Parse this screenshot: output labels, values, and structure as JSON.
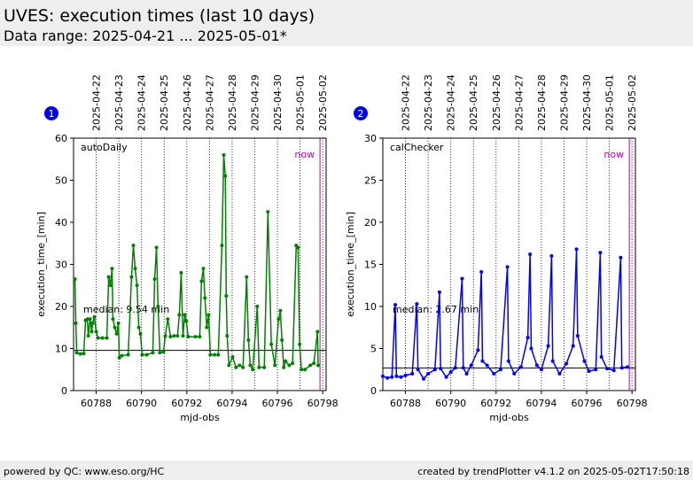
{
  "header": {
    "title": "UVES: execution times (last 10 days)",
    "subtitle": "Data range: 2025-04-21 ... 2025-05-01*"
  },
  "footer": {
    "left": "powered by QC: www.eso.org/HC",
    "right": "created by trendPlotter v4.1.2 on 2025-05-02T17:50:18"
  },
  "chart_data": [
    {
      "type": "line",
      "panel": "1",
      "xlabel": "mjd-obs",
      "ylabel": "execution_time_[min]",
      "xlim": [
        60787.0,
        60798.15
      ],
      "ylim": [
        0,
        60
      ],
      "xticks": [
        60788,
        60790,
        60792,
        60794,
        60796,
        60798
      ],
      "yticks": [
        0,
        10,
        20,
        30,
        40,
        50,
        60
      ],
      "x2ticks": [
        {
          "value": 60788,
          "label": "2025-04-22"
        },
        {
          "value": 60789,
          "label": "2025-04-23"
        },
        {
          "value": 60790,
          "label": "2025-04-24"
        },
        {
          "value": 60791,
          "label": "2025-04-25"
        },
        {
          "value": 60792,
          "label": "2025-04-26"
        },
        {
          "value": 60793,
          "label": "2025-04-27"
        },
        {
          "value": 60794,
          "label": "2025-04-28"
        },
        {
          "value": 60795,
          "label": "2025-04-29"
        },
        {
          "value": 60796,
          "label": "2025-04-30"
        },
        {
          "value": 60797,
          "label": "2025-05-01"
        },
        {
          "value": 60798,
          "label": "2025-05-02"
        }
      ],
      "median": 9.54,
      "median_label": "median: 9.54 min",
      "now": 60797.88,
      "now_label": "now",
      "series": [
        {
          "name": "autoDaily",
          "color": "#008000",
          "x": [
            60787.06,
            60787.1,
            60787.14,
            60787.3,
            60787.45,
            60787.53,
            60787.61,
            60787.65,
            60787.73,
            60787.8,
            60787.84,
            60787.92,
            60788.0,
            60788.08,
            60788.27,
            60788.47,
            60788.55,
            60788.63,
            60788.7,
            60788.74,
            60788.82,
            60788.9,
            60788.98,
            60789.02,
            60789.13,
            60789.41,
            60789.56,
            60789.64,
            60789.72,
            60789.8,
            60789.88,
            60789.95,
            60790.03,
            60790.23,
            60790.5,
            60790.58,
            60790.66,
            60790.73,
            60790.81,
            60790.97,
            60791.05,
            60791.16,
            60791.28,
            60791.44,
            60791.59,
            60791.67,
            60791.75,
            60791.83,
            60791.91,
            60791.98,
            60792.06,
            60792.38,
            60792.57,
            60792.65,
            60792.73,
            60792.8,
            60792.88,
            60792.96,
            60793.04,
            60793.23,
            60793.39,
            60793.55,
            60793.63,
            60793.7,
            60793.74,
            60793.78,
            60793.86,
            60794.02,
            60794.17,
            60794.33,
            60794.48,
            60794.64,
            60794.72,
            60794.8,
            60794.91,
            60795.11,
            60795.19,
            60795.42,
            60795.58,
            60795.73,
            60795.89,
            60796.05,
            60796.13,
            60796.2,
            60796.28,
            60796.36,
            60796.52,
            60796.67,
            60796.83,
            60796.91,
            60796.98,
            60797.06,
            60797.22,
            60797.45,
            60797.61,
            60797.77,
            60797.8
          ],
          "values": [
            26.5,
            16,
            9,
            8.7,
            8.8,
            16.7,
            17,
            13,
            17,
            14,
            16,
            17.5,
            14,
            12.5,
            12.5,
            12.5,
            27,
            25,
            29,
            17,
            15,
            13.5,
            16,
            7.8,
            8.3,
            8.5,
            27,
            34.5,
            29,
            25,
            15,
            13.5,
            8.5,
            8.5,
            9,
            26.5,
            34,
            20,
            9,
            9.2,
            13,
            17,
            12.8,
            13,
            13,
            18,
            28,
            13,
            18,
            16.5,
            12.8,
            12.8,
            12.8,
            26,
            29,
            22,
            15,
            18,
            8.5,
            8.5,
            8.5,
            34.5,
            56,
            51,
            22.5,
            13,
            6,
            8,
            5.5,
            6,
            5.5,
            27,
            12,
            6,
            5,
            20,
            5.5,
            5.5,
            42.5,
            11,
            6,
            17,
            19,
            12,
            5.5,
            7,
            6,
            6.5,
            34.5,
            34,
            11,
            5,
            5,
            6,
            6.5,
            14,
            6
          ]
        }
      ]
    },
    {
      "type": "line",
      "panel": "2",
      "xlabel": "mjd-obs",
      "ylabel": "execution_time_[min]",
      "xlim": [
        60787.0,
        60798.15
      ],
      "ylim": [
        0,
        30
      ],
      "xticks": [
        60788,
        60790,
        60792,
        60794,
        60796,
        60798
      ],
      "yticks": [
        0,
        5,
        10,
        15,
        20,
        25,
        30
      ],
      "x2ticks": [
        {
          "value": 60788,
          "label": "2025-04-22"
        },
        {
          "value": 60789,
          "label": "2025-04-23"
        },
        {
          "value": 60790,
          "label": "2025-04-24"
        },
        {
          "value": 60791,
          "label": "2025-04-25"
        },
        {
          "value": 60792,
          "label": "2025-04-26"
        },
        {
          "value": 60793,
          "label": "2025-04-27"
        },
        {
          "value": 60794,
          "label": "2025-04-28"
        },
        {
          "value": 60795,
          "label": "2025-04-29"
        },
        {
          "value": 60796,
          "label": "2025-04-30"
        },
        {
          "value": 60797,
          "label": "2025-05-01"
        },
        {
          "value": 60798,
          "label": "2025-05-02"
        }
      ],
      "median": 2.67,
      "median_label": "median: 2.67 min",
      "now": 60797.88,
      "now_label": "now",
      "series": [
        {
          "name": "calChecker",
          "color": "#0000ff",
          "x": [
            60787.0,
            60787.2,
            60787.4,
            60787.55,
            60787.6,
            60787.8,
            60788.0,
            60788.3,
            60788.5,
            60788.55,
            60788.8,
            60789.0,
            60789.3,
            60789.5,
            60789.55,
            60789.8,
            60790.0,
            60790.2,
            60790.5,
            60790.55,
            60790.7,
            60790.9,
            60791.2,
            60791.35,
            60791.4,
            60791.6,
            60791.9,
            60792.2,
            60792.5,
            60792.55,
            60792.8,
            60793.1,
            60793.4,
            60793.5,
            60793.55,
            60793.8,
            60794.0,
            60794.3,
            60794.45,
            60794.5,
            60794.8,
            60795.1,
            60795.4,
            60795.55,
            60795.6,
            60795.9,
            60796.1,
            60796.4,
            60796.6,
            60796.65,
            60796.9,
            60797.2,
            60797.5,
            60797.55,
            60797.8
          ],
          "values": [
            1.7,
            1.5,
            1.6,
            10.2,
            1.7,
            1.6,
            1.8,
            2.0,
            10.3,
            2.5,
            1.4,
            2.0,
            2.5,
            11.7,
            2.6,
            1.6,
            2.2,
            2.7,
            13.3,
            2.7,
            2.0,
            3.0,
            4.8,
            14.1,
            3.5,
            3.0,
            2.0,
            2.5,
            14.7,
            3.5,
            2.0,
            2.8,
            6.3,
            16.2,
            5.0,
            3.0,
            2.5,
            5.3,
            16.0,
            3.5,
            2.0,
            3.2,
            5.3,
            16.8,
            6.5,
            3.5,
            2.3,
            2.5,
            16.4,
            4.0,
            2.6,
            2.4,
            15.8,
            2.7,
            2.8
          ]
        }
      ]
    }
  ]
}
